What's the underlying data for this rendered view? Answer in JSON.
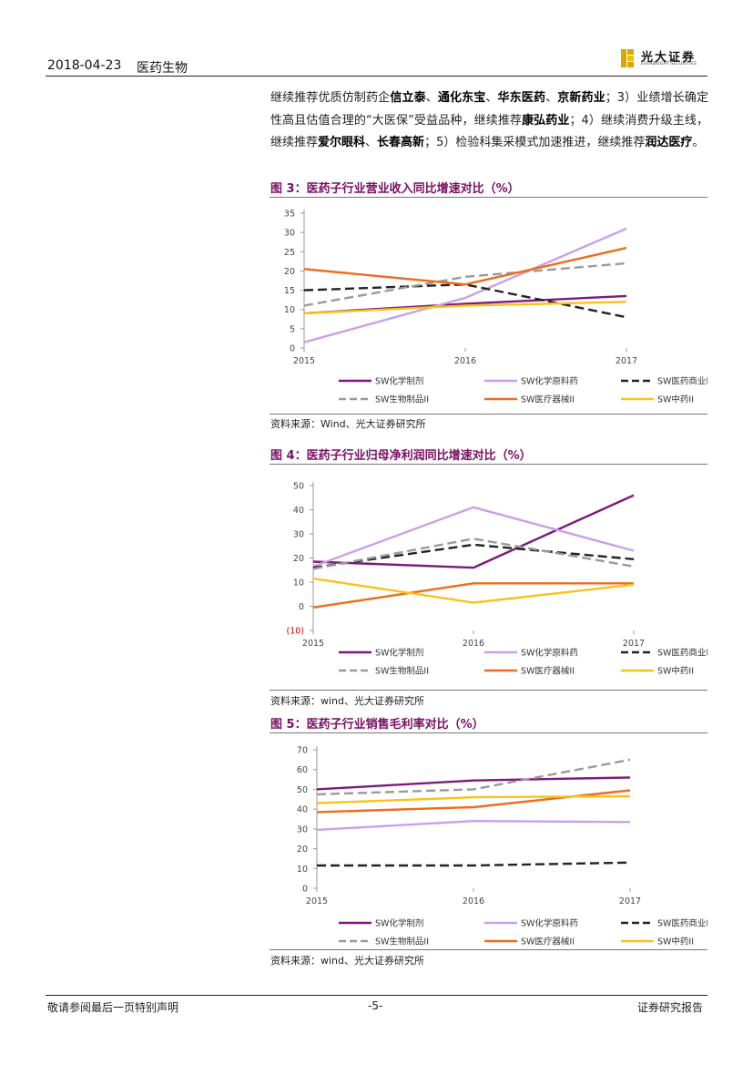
{
  "header": {
    "date": "2018-04-23",
    "section": "医药生物",
    "logo_cn": "光大证券",
    "logo_en": "EVERBRIGHT SECURITIES"
  },
  "intro": {
    "segments": [
      {
        "text": "继续推荐优质仿制药企",
        "bold": false
      },
      {
        "text": "信立泰",
        "bold": true
      },
      {
        "text": "、",
        "bold": false
      },
      {
        "text": "通化东宝",
        "bold": true
      },
      {
        "text": "、",
        "bold": false
      },
      {
        "text": "华东医药",
        "bold": true
      },
      {
        "text": "、",
        "bold": false
      },
      {
        "text": "京新药业",
        "bold": true
      },
      {
        "text": "；3）业绩增长确定性高且估值合理的“大医保”受益品种，继续推荐",
        "bold": false
      },
      {
        "text": "康弘药业",
        "bold": true
      },
      {
        "text": "；4）继续消费升级主线，继续推荐",
        "bold": false
      },
      {
        "text": "爱尔眼科",
        "bold": true
      },
      {
        "text": "、",
        "bold": false
      },
      {
        "text": "长春高新",
        "bold": true
      },
      {
        "text": "；5）检验科集采模式加速推进，继续推荐",
        "bold": false
      },
      {
        "text": "润达医疗",
        "bold": true
      },
      {
        "text": "。",
        "bold": false
      }
    ]
  },
  "colors": {
    "purple": "#7b1a78",
    "lavender": "#c9a0e8",
    "black": "#222222",
    "gray": "#9a9a9a",
    "orange": "#ef6c1a",
    "yellow": "#f7c21a",
    "title": "#7a0e63"
  },
  "chart_data": [
    {
      "type": "line",
      "title": "图 3：医药子行业营业收入同比增速对比（%）",
      "source": "资料来源：Wind、光大证券研究所",
      "categories": [
        "2015",
        "2016",
        "2017"
      ],
      "ylim": [
        0,
        35
      ],
      "yticks": [
        "0",
        "5",
        "10",
        "15",
        "20",
        "25",
        "30",
        "35"
      ],
      "series": [
        {
          "name": "SW化学制剂",
          "values": [
            9,
            11.5,
            13.5
          ],
          "color": "purple",
          "dash": "solid"
        },
        {
          "name": "SW化学原料药",
          "values": [
            1.5,
            13,
            31
          ],
          "color": "lavender",
          "dash": "solid"
        },
        {
          "name": "SW医药商业II",
          "values": [
            15,
            16.5,
            8
          ],
          "color": "black",
          "dash": "dash"
        },
        {
          "name": "SW生物制品II",
          "values": [
            11,
            18.5,
            22
          ],
          "color": "gray",
          "dash": "dash"
        },
        {
          "name": "SW医疗器械II",
          "values": [
            20.5,
            16.5,
            26
          ],
          "color": "orange",
          "dash": "solid"
        },
        {
          "name": "SW中药II",
          "values": [
            9,
            11,
            12
          ],
          "color": "yellow",
          "dash": "solid"
        }
      ]
    },
    {
      "type": "line",
      "title": "图 4：医药子行业归母净利润同比增速对比（%）",
      "source": "资料来源：wind、光大证券研究所",
      "categories": [
        "2015",
        "2016",
        "2017"
      ],
      "ylim": [
        -10,
        50
      ],
      "yticks": [
        "(10)",
        "0",
        "10",
        "20",
        "30",
        "40",
        "50"
      ],
      "series": [
        {
          "name": "SW化学制剂",
          "values": [
            18.5,
            16,
            46
          ],
          "color": "purple",
          "dash": "solid"
        },
        {
          "name": "SW化学原料药",
          "values": [
            16.5,
            41,
            23
          ],
          "color": "lavender",
          "dash": "solid"
        },
        {
          "name": "SW医药商业II",
          "values": [
            16,
            25.5,
            19.5
          ],
          "color": "black",
          "dash": "dash"
        },
        {
          "name": "SW生物制品II",
          "values": [
            15.5,
            28,
            16.5
          ],
          "color": "gray",
          "dash": "dash"
        },
        {
          "name": "SW医疗器械II",
          "values": [
            -0.5,
            9.5,
            9.5
          ],
          "color": "orange",
          "dash": "solid"
        },
        {
          "name": "SW中药II",
          "values": [
            11.5,
            1.5,
            9
          ],
          "color": "yellow",
          "dash": "solid"
        }
      ]
    },
    {
      "type": "line",
      "title": "图 5：医药子行业销售毛利率对比（%）",
      "source": "资料来源：wind、光大证券研究所",
      "categories": [
        "2015",
        "2016",
        "2017"
      ],
      "ylim": [
        0,
        70
      ],
      "yticks": [
        "0",
        "10",
        "20",
        "30",
        "40",
        "50",
        "60",
        "70"
      ],
      "series": [
        {
          "name": "SW化学制剂",
          "values": [
            50,
            54.5,
            56
          ],
          "color": "purple",
          "dash": "solid"
        },
        {
          "name": "SW化学原料药",
          "values": [
            29.5,
            34,
            33.5
          ],
          "color": "lavender",
          "dash": "solid"
        },
        {
          "name": "SW医药商业II",
          "values": [
            11.5,
            11.5,
            13
          ],
          "color": "black",
          "dash": "dash"
        },
        {
          "name": "SW生物制品II",
          "values": [
            47.5,
            50,
            65
          ],
          "color": "gray",
          "dash": "dash"
        },
        {
          "name": "SW医疗器械II",
          "values": [
            38.5,
            41,
            49.5
          ],
          "color": "orange",
          "dash": "solid"
        },
        {
          "name": "SW中药II",
          "values": [
            43,
            46,
            46.5
          ],
          "color": "yellow",
          "dash": "solid"
        }
      ]
    }
  ],
  "footer": {
    "left": "敬请参阅最后一页特别声明",
    "page": "-5-",
    "right": "证券研究报告"
  }
}
